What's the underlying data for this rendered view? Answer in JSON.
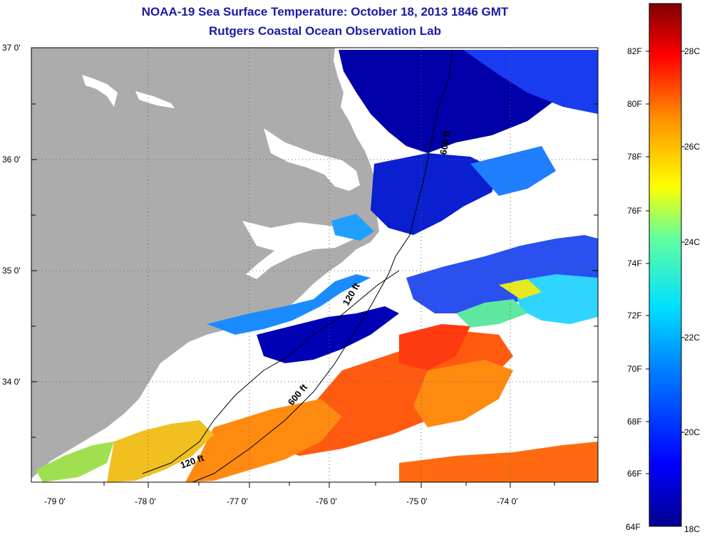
{
  "title_line1": "NOAA-19 Sea Surface Temperature:  October 18, 2013 1846 GMT",
  "title_line2": "Rutgers Coastal Ocean Observation Lab",
  "lat_labels": [
    "37 0'",
    "36 0'",
    "35 0'",
    "34 0'"
  ],
  "lon_labels": [
    "-79 0'",
    "-78 0'",
    "-77 0'",
    "-76 0'",
    "-75 0'",
    "-74 0'"
  ],
  "colorbar_f_labels": [
    "82F",
    "80F",
    "78F",
    "76F",
    "74F",
    "72F",
    "70F",
    "68F",
    "66F",
    "64F"
  ],
  "colorbar_c_labels": [
    "28C",
    "26C",
    "24C",
    "22C",
    "20C",
    "18C"
  ],
  "contour_labels": [
    "600 ft",
    "120 ft",
    "600 ft",
    "120 ft"
  ],
  "colors": {
    "title": "#1a1aa6",
    "land": "#acacac",
    "no_data": "#ffffff",
    "cold": "#00008f",
    "warm": "#800000"
  }
}
